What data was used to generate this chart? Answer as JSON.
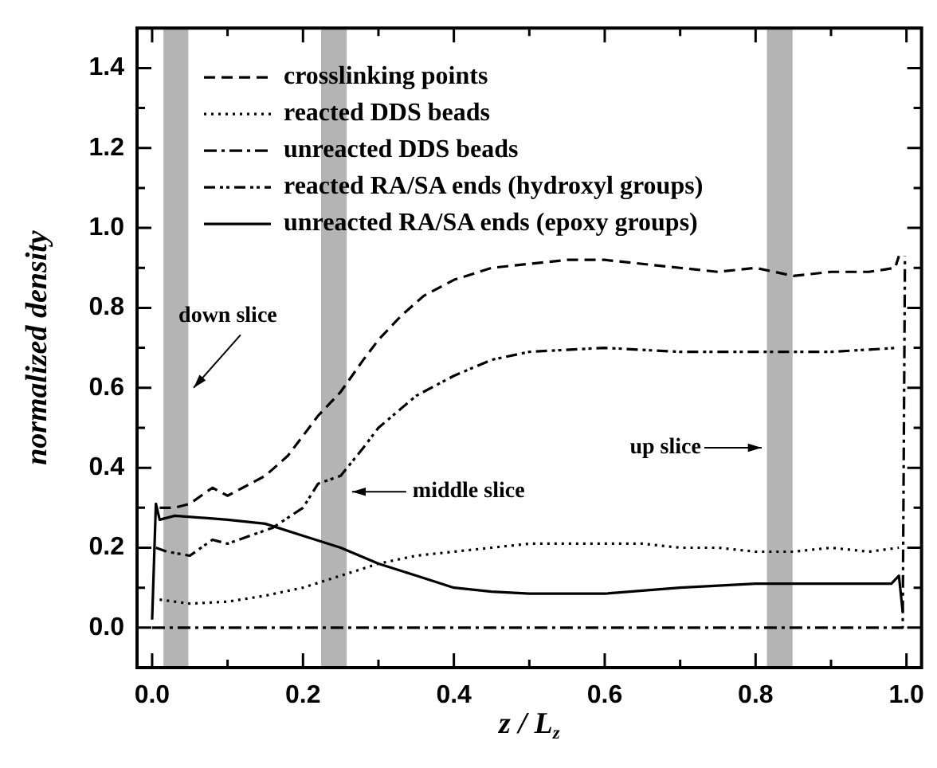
{
  "chart_data": {
    "type": "line",
    "xlabel": "z / L$_{z}$",
    "ylabel": "normalized density",
    "xlim": [
      -0.02,
      1.02
    ],
    "ylim": [
      -0.1,
      1.5
    ],
    "xticks": [
      {
        "value": 0,
        "label": "0.0"
      },
      {
        "value": 0.1,
        "label": null
      },
      {
        "value": 0.2,
        "label": "0.2"
      },
      {
        "value": 0.3,
        "label": null
      },
      {
        "value": 0.4,
        "label": "0.4"
      },
      {
        "value": 0.5,
        "label": null
      },
      {
        "value": 0.6,
        "label": "0.6"
      },
      {
        "value": 0.7,
        "label": null
      },
      {
        "value": 0.8,
        "label": "0.8"
      },
      {
        "value": 0.9,
        "label": null
      },
      {
        "value": 1,
        "label": "1.0"
      }
    ],
    "yticks": [
      {
        "value": -0.1,
        "label": null
      },
      {
        "value": 0,
        "label": "0.0"
      },
      {
        "value": 0.1,
        "label": null
      },
      {
        "value": 0.2,
        "label": "0.2"
      },
      {
        "value": 0.3,
        "label": null
      },
      {
        "value": 0.4,
        "label": "0.4"
      },
      {
        "value": 0.5,
        "label": null
      },
      {
        "value": 0.6,
        "label": "0.6"
      },
      {
        "value": 0.7,
        "label": null
      },
      {
        "value": 0.8,
        "label": "0.8"
      },
      {
        "value": 0.9,
        "label": null
      },
      {
        "value": 1,
        "label": "1.0"
      },
      {
        "value": 1.1,
        "label": null
      },
      {
        "value": 1.2,
        "label": "1.2"
      },
      {
        "value": 1.3,
        "label": null
      },
      {
        "value": 1.4,
        "label": "1.4"
      }
    ],
    "grid": false,
    "legend": "top left",
    "marker": "none",
    "bands": [
      {
        "axis": "x",
        "from": 0.015,
        "to": 0.048,
        "label": "down slice",
        "color": "#b4b4b4"
      },
      {
        "axis": "x",
        "from": 0.224,
        "to": 0.258,
        "label": "middle slice",
        "color": "#b4b4b4"
      },
      {
        "axis": "x",
        "from": 0.815,
        "to": 0.849,
        "label": "up slice",
        "color": "#b4b4b4"
      }
    ],
    "series": [
      {
        "name": "crosslinking points",
        "color": "#000000",
        "line_style": "dashed",
        "x": [
          0.01,
          0.03,
          0.05,
          0.08,
          0.1,
          0.12,
          0.15,
          0.18,
          0.2,
          0.22,
          0.25,
          0.28,
          0.3,
          0.33,
          0.36,
          0.4,
          0.45,
          0.5,
          0.55,
          0.6,
          0.65,
          0.7,
          0.75,
          0.8,
          0.85,
          0.9,
          0.95,
          0.985,
          0.99
        ],
        "values": [
          0.3,
          0.3,
          0.31,
          0.35,
          0.33,
          0.35,
          0.38,
          0.43,
          0.48,
          0.53,
          0.59,
          0.67,
          0.72,
          0.78,
          0.83,
          0.87,
          0.9,
          0.91,
          0.92,
          0.92,
          0.91,
          0.9,
          0.89,
          0.9,
          0.88,
          0.89,
          0.89,
          0.9,
          0.93
        ]
      },
      {
        "name": "reacted DDS beads",
        "color": "#000000",
        "line_style": "dotted",
        "x": [
          0.01,
          0.05,
          0.1,
          0.15,
          0.2,
          0.25,
          0.3,
          0.35,
          0.4,
          0.45,
          0.5,
          0.55,
          0.6,
          0.65,
          0.7,
          0.75,
          0.8,
          0.85,
          0.9,
          0.95,
          0.99
        ],
        "values": [
          0.07,
          0.06,
          0.065,
          0.08,
          0.1,
          0.13,
          0.16,
          0.18,
          0.19,
          0.2,
          0.21,
          0.21,
          0.21,
          0.21,
          0.2,
          0.2,
          0.19,
          0.19,
          0.2,
          0.19,
          0.2
        ]
      },
      {
        "name": "unreacted DDS beads",
        "color": "#000000",
        "line_style": "dashdot",
        "x": [
          0,
          0.2,
          0.4,
          0.6,
          0.8,
          0.995,
          0.998
        ],
        "values": [
          0,
          0,
          0,
          0,
          0,
          0,
          0.93
        ]
      },
      {
        "name": "reacted RA/SA ends (hydroxyl groups)",
        "color": "#000000",
        "line_style": "dashdotdot",
        "x": [
          0.005,
          0.02,
          0.05,
          0.08,
          0.1,
          0.13,
          0.16,
          0.2,
          0.22,
          0.25,
          0.28,
          0.3,
          0.35,
          0.4,
          0.45,
          0.5,
          0.6,
          0.7,
          0.8,
          0.9,
          0.99
        ],
        "values": [
          0.2,
          0.19,
          0.18,
          0.22,
          0.21,
          0.23,
          0.25,
          0.3,
          0.36,
          0.38,
          0.45,
          0.5,
          0.58,
          0.63,
          0.67,
          0.69,
          0.7,
          0.69,
          0.69,
          0.69,
          0.7
        ]
      },
      {
        "name": "unreacted RA/SA ends (epoxy groups)",
        "color": "#000000",
        "line_style": "solid",
        "x": [
          0,
          0.005,
          0.01,
          0.03,
          0.1,
          0.15,
          0.2,
          0.25,
          0.3,
          0.35,
          0.4,
          0.45,
          0.5,
          0.6,
          0.7,
          0.8,
          0.9,
          0.98,
          0.99,
          0.995
        ],
        "values": [
          0.02,
          0.31,
          0.27,
          0.28,
          0.27,
          0.26,
          0.23,
          0.2,
          0.16,
          0.13,
          0.1,
          0.09,
          0.085,
          0.085,
          0.1,
          0.11,
          0.11,
          0.11,
          0.13,
          0.04
        ]
      }
    ]
  }
}
